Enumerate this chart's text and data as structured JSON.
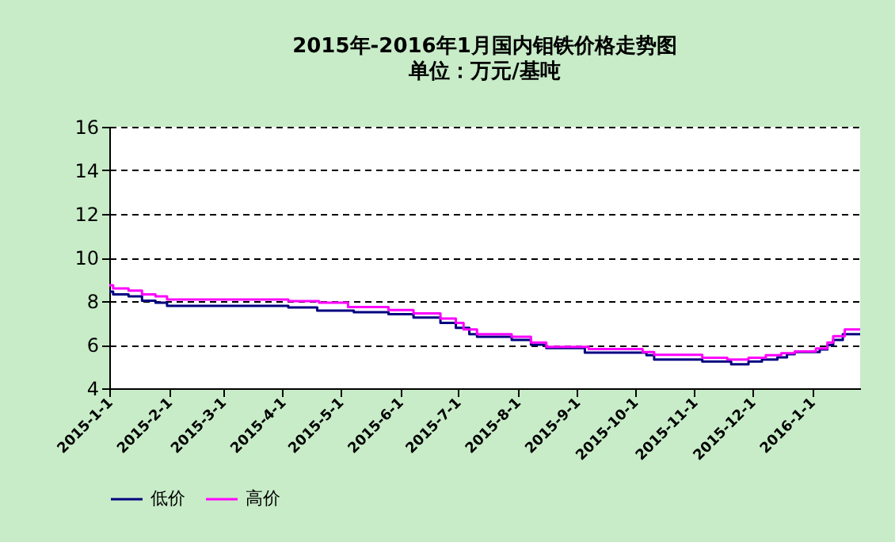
{
  "chart_data": {
    "type": "step",
    "title": "2015年-2016年1月国内钼铁价格走势图",
    "subtitle": "单位：万元/基吨",
    "ylim": [
      4,
      16
    ],
    "yticks": [
      4,
      6,
      8,
      10,
      12,
      14,
      16
    ],
    "xlim": [
      "2015-01-01",
      "2016-01-26"
    ],
    "xticks": [
      {
        "value": "2015-01-01",
        "label": "2015-1-1"
      },
      {
        "value": "2015-02-01",
        "label": "2015-2-1"
      },
      {
        "value": "2015-03-01",
        "label": "2015-3-1"
      },
      {
        "value": "2015-04-01",
        "label": "2015-4-1"
      },
      {
        "value": "2015-05-01",
        "label": "2015-5-1"
      },
      {
        "value": "2015-06-01",
        "label": "2015-6-1"
      },
      {
        "value": "2015-07-01",
        "label": "2015-7-1"
      },
      {
        "value": "2015-08-01",
        "label": "2015-8-1"
      },
      {
        "value": "2015-09-01",
        "label": "2015-9-1"
      },
      {
        "value": "2015-10-01",
        "label": "2015-10-1"
      },
      {
        "value": "2015-11-01",
        "label": "2015-11-1"
      },
      {
        "value": "2015-12-01",
        "label": "2015-12-1"
      },
      {
        "value": "2016-01-01",
        "label": "2016-1-1"
      }
    ],
    "grid": "y",
    "legend": "bottom",
    "line_style": "solid",
    "marker": "none",
    "series": [
      {
        "name": "低价",
        "color": "#000080",
        "x": [
          "2015-01-01",
          "2015-01-03",
          "2015-01-11",
          "2015-01-18",
          "2015-01-25",
          "2015-01-31",
          "2015-04-04",
          "2015-04-19",
          "2015-05-08",
          "2015-05-26",
          "2015-06-08",
          "2015-06-22",
          "2015-06-30",
          "2015-07-07",
          "2015-07-11",
          "2015-07-29",
          "2015-08-08",
          "2015-08-16",
          "2015-09-05",
          "2015-10-07",
          "2015-10-11",
          "2015-11-05",
          "2015-11-20",
          "2015-11-29",
          "2015-12-06",
          "2015-12-14",
          "2015-12-19",
          "2015-12-23",
          "2016-01-05",
          "2016-01-09",
          "2016-01-12",
          "2016-01-17",
          "2016-01-26"
        ],
        "values": [
          8.44,
          8.31,
          8.22,
          8.02,
          7.93,
          7.78,
          7.71,
          7.56,
          7.49,
          7.4,
          7.25,
          7.0,
          6.77,
          6.48,
          6.36,
          6.22,
          6.0,
          5.85,
          5.64,
          5.52,
          5.32,
          5.23,
          5.1,
          5.23,
          5.32,
          5.42,
          5.56,
          5.66,
          5.78,
          5.98,
          6.22,
          6.48,
          6.48
        ]
      },
      {
        "name": "高价",
        "color": "#ff00ff",
        "x": [
          "2015-01-01",
          "2015-01-03",
          "2015-01-11",
          "2015-01-18",
          "2015-01-25",
          "2015-01-31",
          "2015-04-04",
          "2015-04-20",
          "2015-05-05",
          "2015-05-26",
          "2015-06-08",
          "2015-06-22",
          "2015-06-30",
          "2015-07-04",
          "2015-07-11",
          "2015-07-29",
          "2015-08-08",
          "2015-08-16",
          "2015-09-07",
          "2015-10-05",
          "2015-10-11",
          "2015-11-05",
          "2015-11-18",
          "2015-11-29",
          "2015-12-08",
          "2015-12-16",
          "2015-12-23",
          "2016-01-03",
          "2016-01-09",
          "2016-01-12",
          "2016-01-18",
          "2016-01-26"
        ],
        "values": [
          8.73,
          8.58,
          8.48,
          8.31,
          8.22,
          8.07,
          8.0,
          7.93,
          7.73,
          7.59,
          7.44,
          7.2,
          7.0,
          6.7,
          6.48,
          6.36,
          6.1,
          5.9,
          5.8,
          5.66,
          5.54,
          5.4,
          5.32,
          5.4,
          5.52,
          5.61,
          5.69,
          5.83,
          6.1,
          6.39,
          6.7,
          6.7
        ]
      }
    ]
  }
}
